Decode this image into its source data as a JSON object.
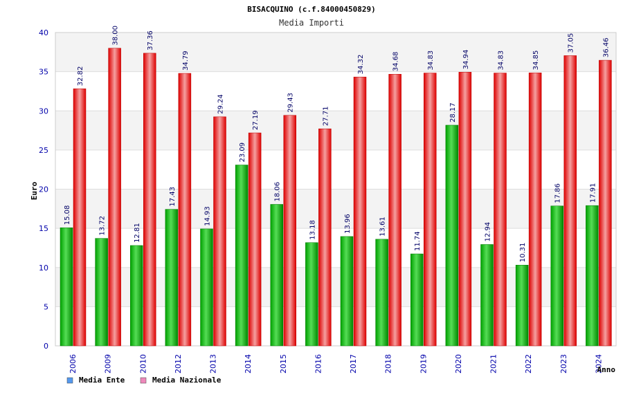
{
  "chart_data": {
    "type": "bar",
    "title": "BISACQUINO (c.f.84000450829)",
    "subtitle": "Media Importi",
    "xlabel": "Anno",
    "ylabel": "Euro",
    "ylim": [
      0,
      40
    ],
    "yticks": [
      0,
      5,
      10,
      15,
      20,
      25,
      30,
      35,
      40
    ],
    "grid": true,
    "legend_position": "bottom-left",
    "categories": [
      "2006",
      "2009",
      "2010",
      "2012",
      "2013",
      "2014",
      "2015",
      "2016",
      "2017",
      "2018",
      "2019",
      "2020",
      "2021",
      "2022",
      "2023",
      "2024"
    ],
    "series": [
      {
        "name": "Media Ente",
        "color": "#00bb00",
        "values": [
          15.08,
          13.72,
          12.81,
          17.43,
          14.93,
          23.09,
          18.06,
          13.18,
          13.96,
          13.61,
          11.74,
          28.17,
          12.94,
          10.31,
          17.86,
          17.91
        ],
        "labels": [
          "15.08",
          "13.72",
          "12.81",
          "17.43",
          "14.93",
          "23.09",
          "18.06",
          "13.18",
          "13.96",
          "13.61",
          "11.74",
          "28.17",
          "12.94",
          "10.31",
          "17.86",
          "17.91"
        ]
      },
      {
        "name": "Media Nazionale",
        "color": "#ee0000",
        "values": [
          32.82,
          38.0,
          37.36,
          34.79,
          29.24,
          27.19,
          29.43,
          27.71,
          34.32,
          34.68,
          34.83,
          34.94,
          34.83,
          34.85,
          37.05,
          36.46
        ],
        "labels": [
          "32.82",
          "38.00",
          "37.36",
          "34.79",
          "29.24",
          "27.19",
          "29.43",
          "27.71",
          "34.32",
          "34.68",
          "34.83",
          "34.94",
          "34.83",
          "34.85",
          "37.05",
          "36.46"
        ]
      }
    ],
    "legend_swatches": [
      "#5599ee",
      "#ee88bb"
    ]
  }
}
